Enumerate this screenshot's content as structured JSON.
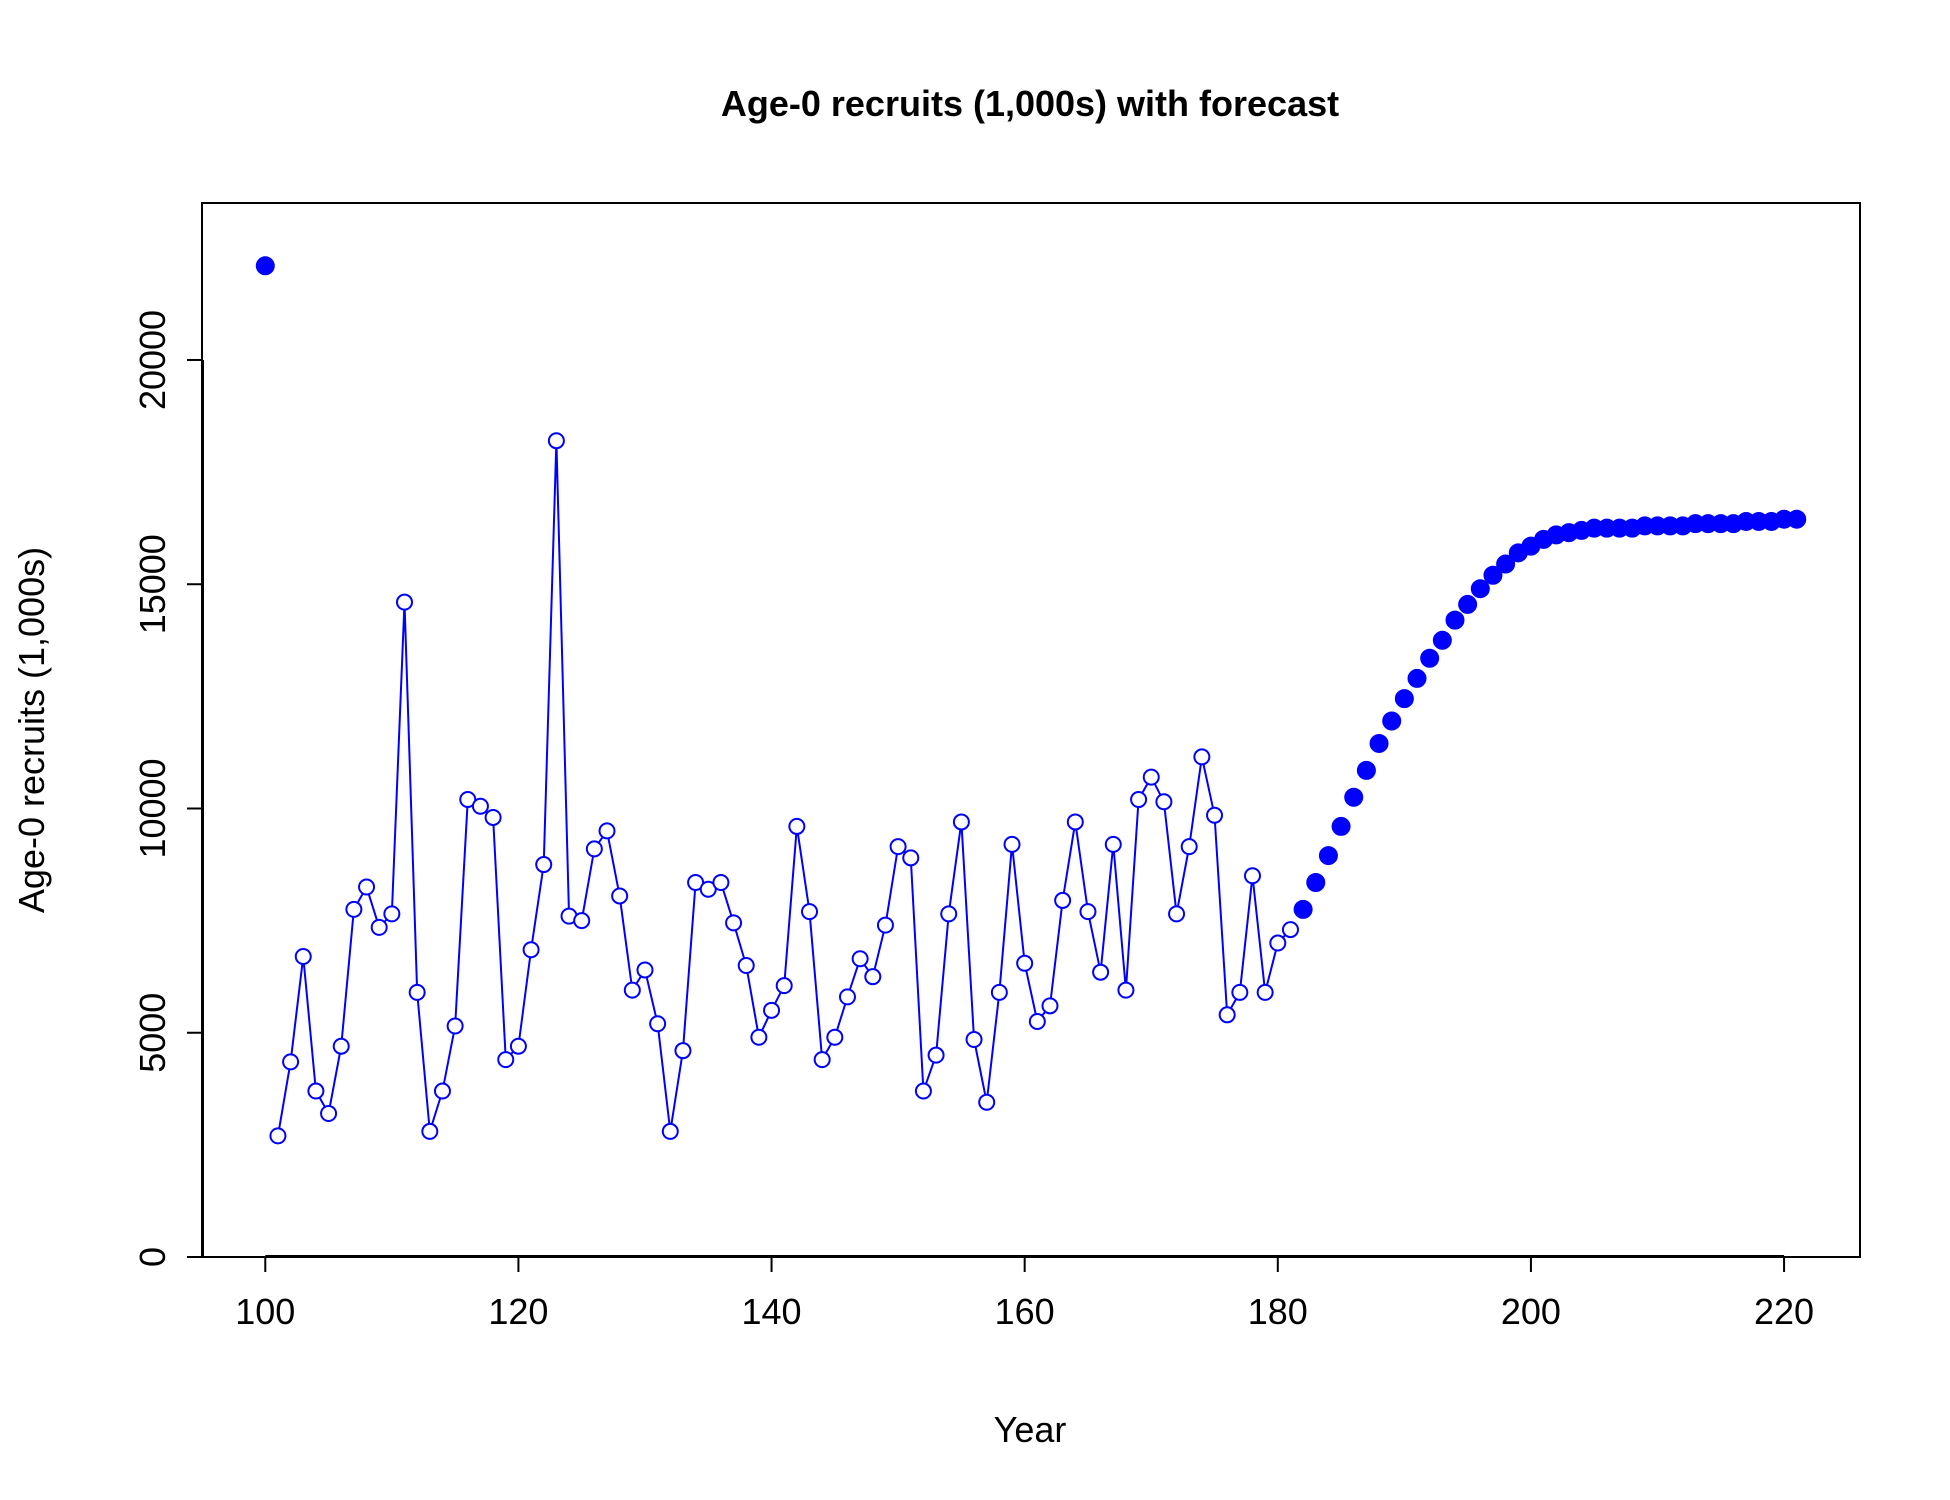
{
  "chart_data": {
    "type": "line",
    "title": "Age-0 recruits (1,000s) with forecast",
    "xlabel": "Year",
    "ylabel": "Age-0 recruits (1,000s)",
    "xlim": [
      95,
      226
    ],
    "ylim": [
      0,
      23500
    ],
    "x_ticks": [
      100,
      120,
      140,
      160,
      180,
      200,
      220
    ],
    "x_tick_labels": [
      "100",
      "120",
      "140",
      "160",
      "180",
      "200",
      "220"
    ],
    "y_ticks": [
      0,
      5000,
      10000,
      15000,
      20000
    ],
    "y_tick_labels": [
      "0",
      "5000",
      "10000",
      "15000",
      "20000"
    ],
    "grid": false,
    "legend": "none",
    "colors": {
      "series": "#0000ff",
      "axis": "#000000",
      "background": "#ffffff"
    },
    "series": [
      {
        "style": "line+open-circles",
        "x": [
          101,
          102,
          103,
          104,
          105,
          106,
          107,
          108,
          109,
          110,
          111,
          112,
          113,
          114,
          115,
          116,
          117,
          118,
          119,
          120,
          121,
          122,
          123,
          124,
          125,
          126,
          127,
          128,
          129,
          130,
          131,
          132,
          133,
          134,
          135,
          136,
          137,
          138,
          139,
          140,
          141,
          142,
          143,
          144,
          145,
          146,
          147,
          148,
          149,
          150,
          151,
          152,
          153,
          154,
          155,
          156,
          157,
          158,
          159,
          160,
          161,
          162,
          163,
          164,
          165,
          166,
          167,
          168,
          169,
          170,
          171,
          172,
          173,
          174,
          175,
          176,
          177,
          178,
          179,
          180,
          181
        ],
        "values": [
          2700,
          4350,
          6700,
          3700,
          3200,
          4700,
          7750,
          8250,
          7350,
          7650,
          14600,
          5900,
          2800,
          3700,
          5150,
          10200,
          10050,
          9800,
          4400,
          4700,
          6850,
          8750,
          18200,
          7600,
          7500,
          9100,
          9500,
          8050,
          5950,
          6400,
          5200,
          2800,
          4600,
          8350,
          8200,
          8350,
          7450,
          6500,
          4900,
          5500,
          6050,
          9600,
          7700,
          4400,
          4900,
          5800,
          6650,
          6250,
          7400,
          9150,
          8900,
          3700,
          4500,
          7650,
          9700,
          4850,
          3450,
          5900,
          9200,
          6550,
          5250,
          5600,
          7950,
          9700,
          7700,
          6350,
          9200,
          5950,
          10200,
          10700,
          10150,
          7650,
          9150,
          11150,
          9850,
          5400,
          5900,
          8500,
          5900,
          7000,
          7300
        ]
      },
      {
        "style": "filled-points",
        "x": [
          100,
          182,
          183,
          184,
          185,
          186,
          187,
          188,
          189,
          190,
          191,
          192,
          193,
          194,
          195,
          196,
          197,
          198,
          199,
          200,
          201,
          202,
          203,
          204,
          205,
          206,
          207,
          208,
          209,
          210,
          211,
          212,
          213,
          214,
          215,
          216,
          217,
          218,
          219,
          220,
          221
        ],
        "values": [
          22100,
          7750,
          8350,
          8950,
          9600,
          10250,
          10850,
          11450,
          11950,
          12450,
          12900,
          13350,
          13750,
          14200,
          14550,
          14900,
          15200,
          15450,
          15700,
          15850,
          16000,
          16100,
          16150,
          16200,
          16250,
          16250,
          16250,
          16250,
          16300,
          16300,
          16300,
          16300,
          16350,
          16350,
          16350,
          16350,
          16400,
          16400,
          16400,
          16450,
          16450
        ]
      }
    ]
  }
}
